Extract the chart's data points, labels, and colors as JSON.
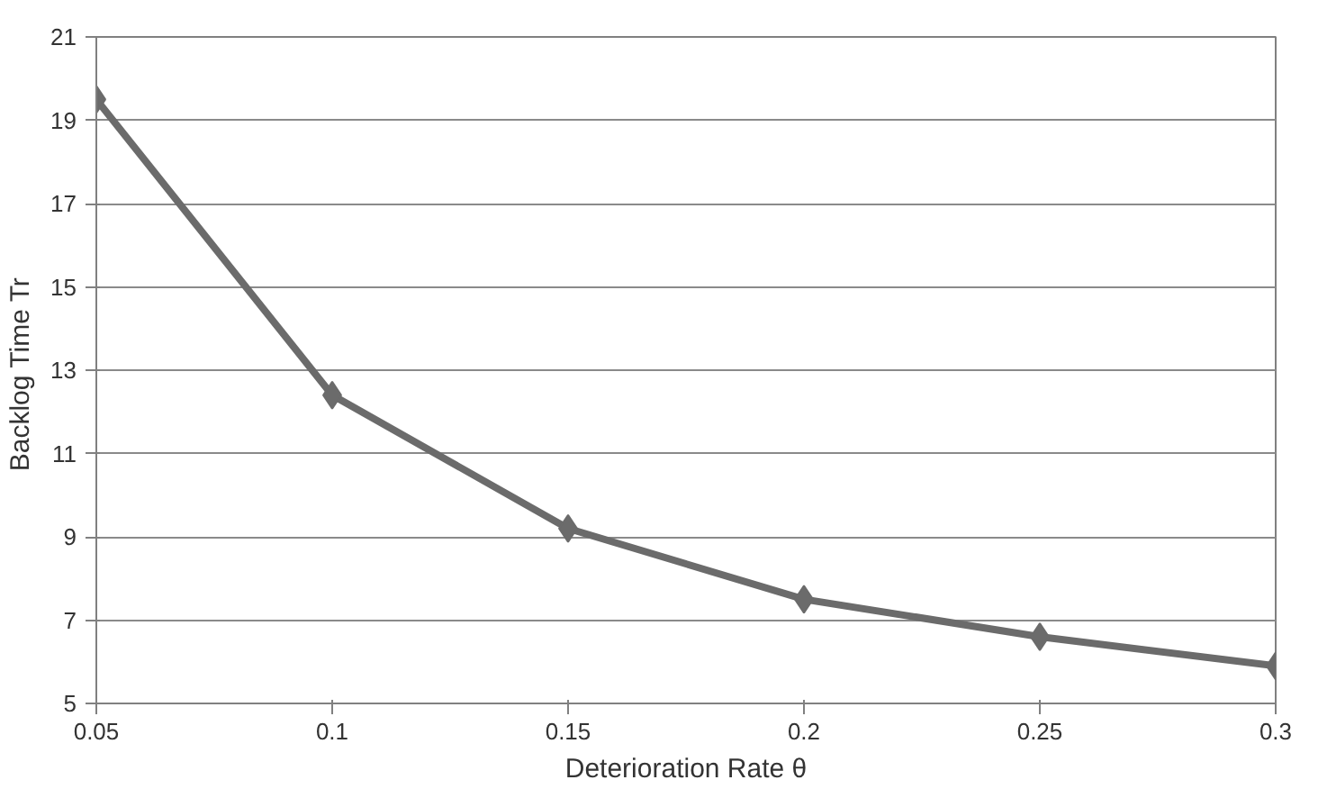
{
  "chart_data": {
    "type": "line",
    "xlabel": "Deterioration Rate θ",
    "ylabel": "Backlog Time  Tr",
    "x": [
      0.05,
      0.1,
      0.15,
      0.2,
      0.25,
      0.3
    ],
    "series": [
      {
        "color": "#6b6b6b",
        "values": [
          19.5,
          12.4,
          9.2,
          7.5,
          6.6,
          5.9
        ]
      }
    ],
    "xlim": [
      0.05,
      0.3
    ],
    "xticks": [
      0.05,
      0.1,
      0.15,
      0.2,
      0.25,
      0.3
    ],
    "ylim": [
      5,
      21
    ],
    "yticks": [
      5,
      7,
      9,
      11,
      13,
      15,
      17,
      19,
      21
    ],
    "grid": "y",
    "marker": "diamond",
    "line_style": "solid"
  }
}
